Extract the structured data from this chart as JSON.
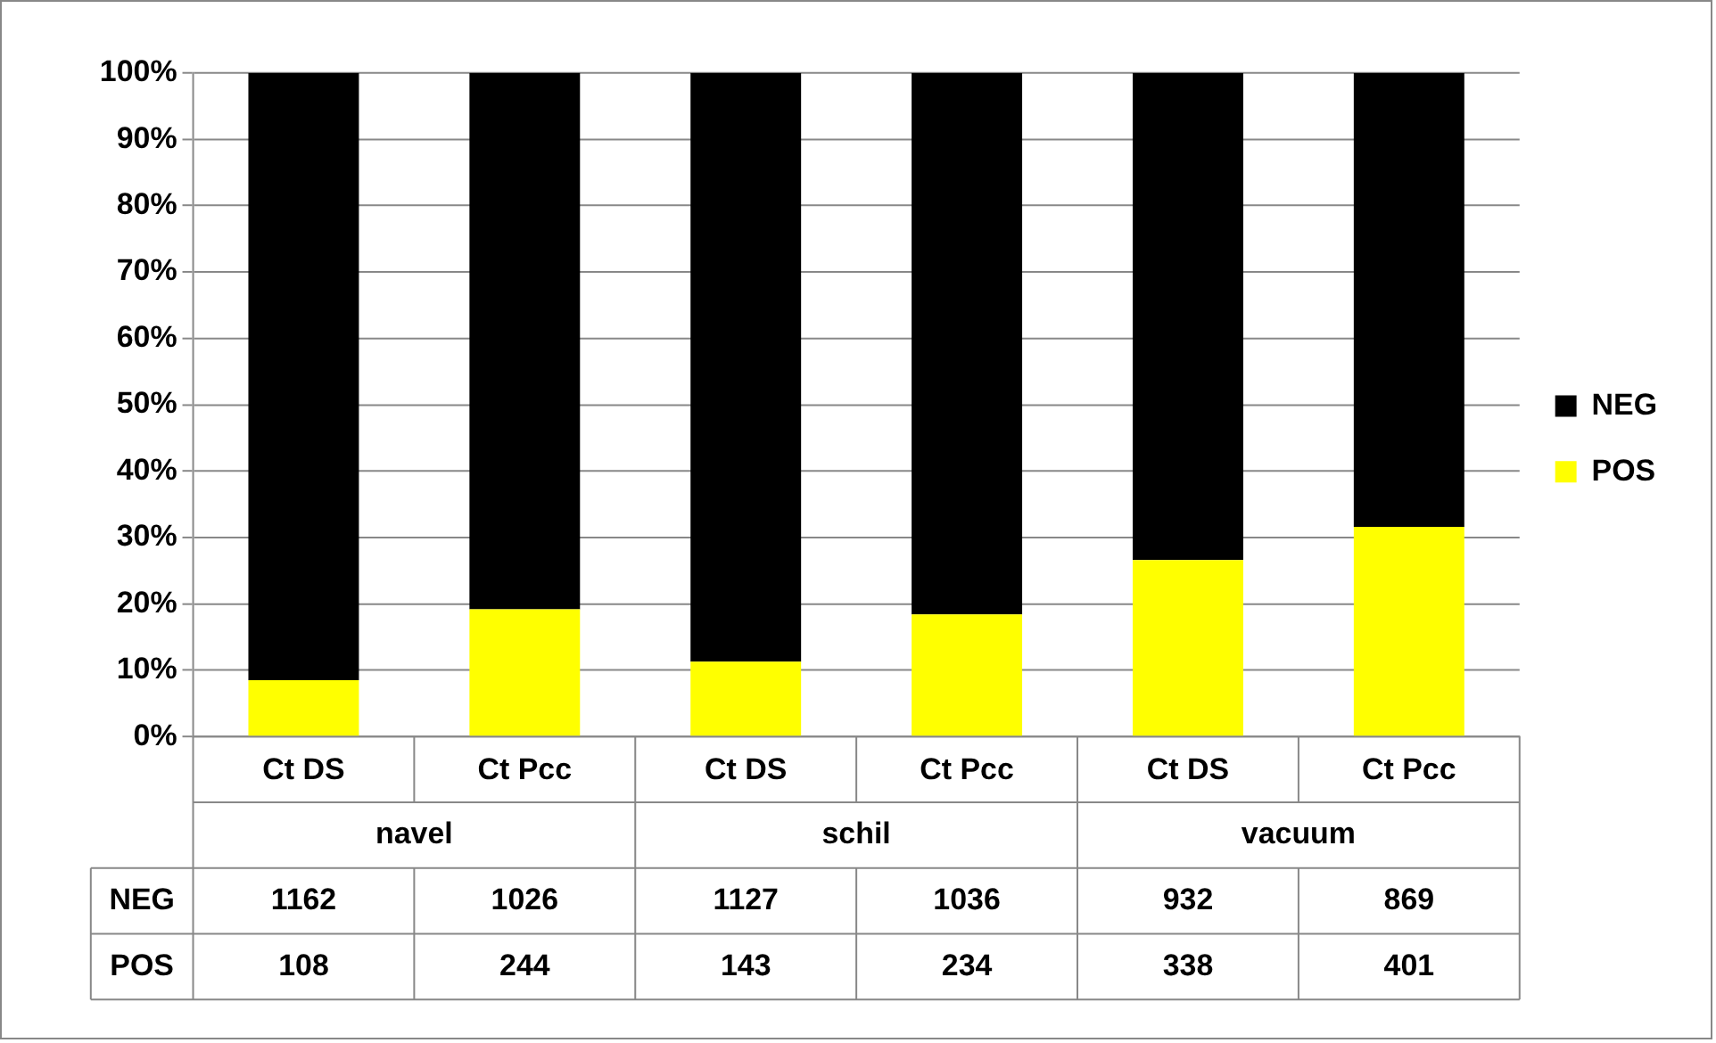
{
  "chart_data": {
    "type": "bar",
    "stacked": true,
    "categories": [
      "Ct DS",
      "Ct Pcc",
      "Ct DS",
      "Ct Pcc",
      "Ct DS",
      "Ct Pcc"
    ],
    "series": [
      {
        "name": "POS",
        "color": "#ffff00",
        "values": [
          8.5,
          19.2,
          11.3,
          18.4,
          26.6,
          31.6
        ]
      },
      {
        "name": "NEG",
        "color": "#000000",
        "values": [
          91.5,
          80.8,
          88.7,
          81.6,
          73.4,
          68.4
        ]
      }
    ],
    "annotations": [
      "navel",
      "schil",
      "vacuum",
      "1162",
      "1026",
      "1127",
      "1036",
      "932",
      "869",
      "108",
      "244",
      "143",
      "234",
      "338",
      "401"
    ],
    "ylim": [
      0,
      100
    ],
    "yticks": [
      {
        "value": 0,
        "label": "0%"
      },
      {
        "value": 10,
        "label": "10%"
      },
      {
        "value": 20,
        "label": "20%"
      },
      {
        "value": 30,
        "label": "30%"
      },
      {
        "value": 40,
        "label": "40%"
      },
      {
        "value": 50,
        "label": "50%"
      },
      {
        "value": 60,
        "label": "60%"
      },
      {
        "value": 70,
        "label": "70%"
      },
      {
        "value": 80,
        "label": "80%"
      },
      {
        "value": 90,
        "label": "90%"
      },
      {
        "value": 100,
        "label": "100%"
      }
    ],
    "grid": "y",
    "legend": "right"
  }
}
